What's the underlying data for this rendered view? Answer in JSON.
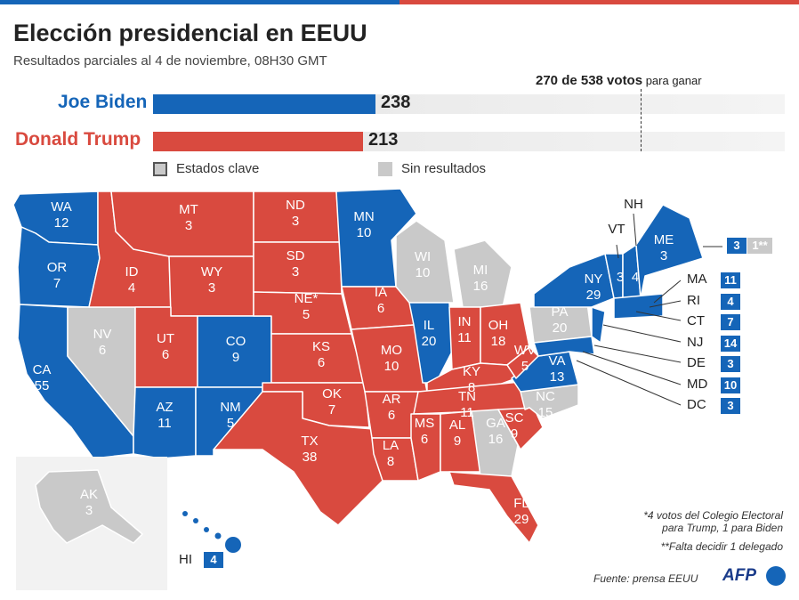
{
  "title": "Elección presidencial en EEUU",
  "subtitle": "Resultados parciales al 4 de noviembre, 08H30 GMT",
  "goal": {
    "bold": "270 de 538 votos",
    "small": " para ganar"
  },
  "candidates": [
    {
      "name": "Joe Biden",
      "votes": "238"
    },
    {
      "name": "Donald Trump",
      "votes": "213"
    }
  ],
  "totals": {
    "electoral_total": 538,
    "to_win": 270
  },
  "legend": {
    "key": "Estados clave",
    "no_results": "Sin resultados"
  },
  "colors": {
    "biden": "#1565b8",
    "trump": "#d94a3f",
    "pending": "#c9c9c9"
  },
  "states": {
    "WA": {
      "abbr": "WA",
      "ev": "12"
    },
    "OR": {
      "abbr": "OR",
      "ev": "7"
    },
    "CA": {
      "abbr": "CA",
      "ev": "55"
    },
    "NV": {
      "abbr": "NV",
      "ev": "6"
    },
    "ID": {
      "abbr": "ID",
      "ev": "4"
    },
    "MT": {
      "abbr": "MT",
      "ev": "3"
    },
    "WY": {
      "abbr": "WY",
      "ev": "3"
    },
    "UT": {
      "abbr": "UT",
      "ev": "6"
    },
    "AZ": {
      "abbr": "AZ",
      "ev": "11"
    },
    "CO": {
      "abbr": "CO",
      "ev": "9"
    },
    "NM": {
      "abbr": "NM",
      "ev": "5"
    },
    "ND": {
      "abbr": "ND",
      "ev": "3"
    },
    "SD": {
      "abbr": "SD",
      "ev": "3"
    },
    "NE": {
      "abbr": "NE*",
      "ev": "5"
    },
    "KS": {
      "abbr": "KS",
      "ev": "6"
    },
    "OK": {
      "abbr": "OK",
      "ev": "7"
    },
    "TX": {
      "abbr": "TX",
      "ev": "38"
    },
    "MN": {
      "abbr": "MN",
      "ev": "10"
    },
    "IA": {
      "abbr": "IA",
      "ev": "6"
    },
    "MO": {
      "abbr": "MO",
      "ev": "10"
    },
    "AR": {
      "abbr": "AR",
      "ev": "6"
    },
    "LA": {
      "abbr": "LA",
      "ev": "8"
    },
    "WI": {
      "abbr": "WI",
      "ev": "10"
    },
    "IL": {
      "abbr": "IL",
      "ev": "20"
    },
    "MI": {
      "abbr": "MI",
      "ev": "16"
    },
    "IN": {
      "abbr": "IN",
      "ev": "11"
    },
    "OH": {
      "abbr": "OH",
      "ev": "18"
    },
    "KY": {
      "abbr": "KY",
      "ev": "8"
    },
    "TN": {
      "abbr": "TN",
      "ev": "11"
    },
    "MS": {
      "abbr": "MS",
      "ev": "6"
    },
    "AL": {
      "abbr": "AL",
      "ev": "9"
    },
    "GA": {
      "abbr": "GA",
      "ev": "16"
    },
    "FL": {
      "abbr": "FL",
      "ev": "29"
    },
    "SC": {
      "abbr": "SC",
      "ev": "9"
    },
    "NC": {
      "abbr": "NC",
      "ev": "15"
    },
    "VA": {
      "abbr": "VA",
      "ev": "13"
    },
    "WV": {
      "abbr": "WV",
      "ev": "5"
    },
    "PA": {
      "abbr": "PA",
      "ev": "20"
    },
    "NY": {
      "abbr": "NY",
      "ev": "29"
    },
    "VT": {
      "abbr": "VT",
      "ev": "3"
    },
    "NH": {
      "abbr": "NH",
      "ev": "4"
    },
    "ME": {
      "abbr": "ME",
      "ev": "3"
    },
    "AK": {
      "abbr": "AK",
      "ev": "3"
    }
  },
  "side_states": [
    {
      "abbr": "MA",
      "ev": "11"
    },
    {
      "abbr": "RI",
      "ev": "4"
    },
    {
      "abbr": "CT",
      "ev": "7"
    },
    {
      "abbr": "NJ",
      "ev": "14"
    },
    {
      "abbr": "DE",
      "ev": "3"
    },
    {
      "abbr": "MD",
      "ev": "10"
    },
    {
      "abbr": "DC",
      "ev": "3"
    }
  ],
  "hawaii": {
    "abbr": "HI",
    "ev": "4"
  },
  "maine_pending": "1**",
  "notes": {
    "n1a": "*4 votos del Colegio Electoral",
    "n1b": "para Trump, 1 para Biden",
    "n2": "**Falta decidir 1 delegado"
  },
  "source": "Fuente: prensa EEUU",
  "agency": "AFP"
}
